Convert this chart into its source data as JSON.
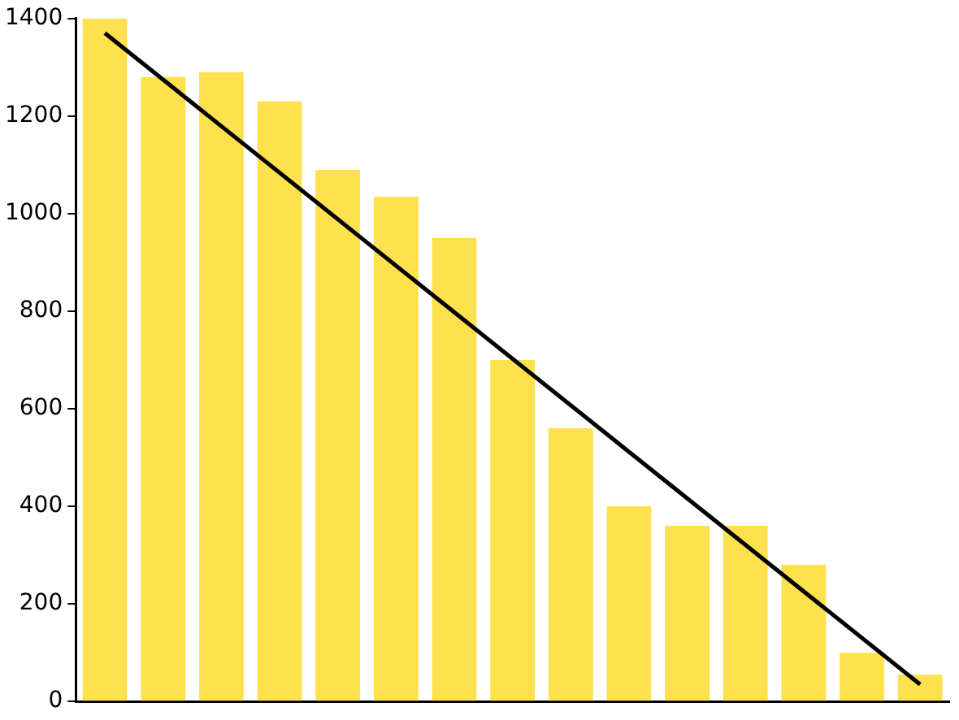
{
  "chart_data": {
    "type": "bar",
    "categories": [
      null,
      null,
      null,
      null,
      null,
      null,
      null,
      null,
      null,
      null,
      null,
      null,
      null,
      null,
      null
    ],
    "series": [
      {
        "color": "#ffe04f",
        "values": [
          1400,
          1280,
          1290,
          1230,
          1090,
          1035,
          950,
          700,
          560,
          400,
          360,
          360,
          280,
          100,
          55
        ]
      },
      {
        "type": "line",
        "color": "#000000",
        "values": [
          1370,
          null,
          null,
          null,
          null,
          null,
          null,
          null,
          null,
          null,
          null,
          null,
          null,
          null,
          35
        ]
      }
    ],
    "ylim": [
      0,
      1400
    ],
    "yticks": [
      0,
      200,
      400,
      600,
      800,
      1000,
      1200,
      1400
    ],
    "grid": false,
    "legend": false,
    "marker": "none",
    "line_style": "solid"
  }
}
